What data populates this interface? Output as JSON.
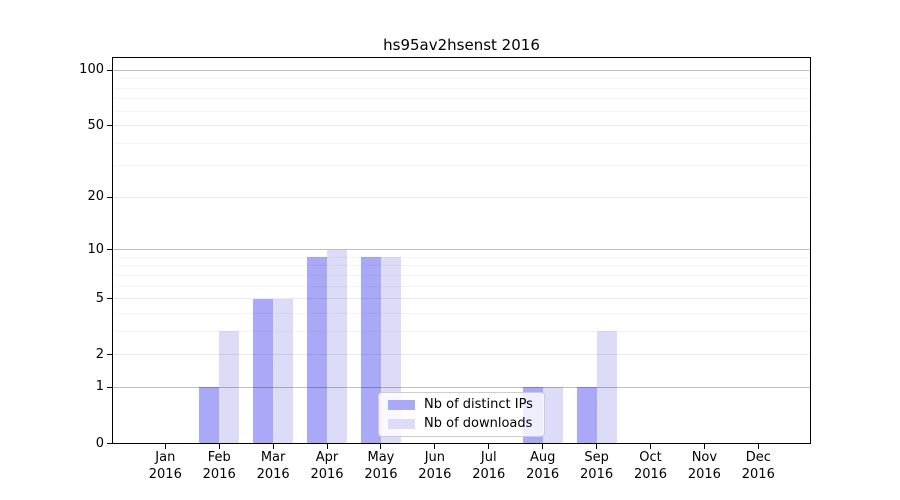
{
  "chart_data": {
    "type": "bar",
    "title": "hs95av2hsenst 2016",
    "categories": [
      "Jan",
      "Feb",
      "Mar",
      "Apr",
      "May",
      "Jun",
      "Jul",
      "Aug",
      "Sep",
      "Oct",
      "Nov",
      "Dec"
    ],
    "category_year": "2016",
    "series": [
      {
        "name": "Nb of distinct IPs",
        "color": "#a9a9f7",
        "values": [
          0,
          1,
          5,
          9,
          9,
          0,
          0,
          1,
          1,
          0,
          0,
          0
        ]
      },
      {
        "name": "Nb of downloads",
        "color": "#dcdcf9",
        "values": [
          0,
          3,
          5,
          10,
          9,
          0,
          0,
          1,
          3,
          0,
          0,
          0
        ]
      }
    ],
    "y_axis": {
      "scale": "log1p",
      "major_ticks": [
        0,
        1,
        2,
        5,
        10,
        20,
        50,
        100
      ],
      "minor_ticks": [
        3,
        4,
        6,
        7,
        8,
        9,
        30,
        40,
        60,
        70,
        80,
        90
      ],
      "range": [
        0,
        118
      ]
    },
    "legend_position": "lower center-right",
    "grid": "on"
  },
  "colors": {
    "background": "#ffffff",
    "axis": "#000000",
    "grid_decade": "rgba(0,0,0,0.25)",
    "grid_major": "rgba(0,0,0,0.08)",
    "grid_minor": "rgba(0,0,0,0.045)",
    "legend_border": "#cccccc",
    "legend_bg": "rgba(255,255,255,0.8)"
  }
}
